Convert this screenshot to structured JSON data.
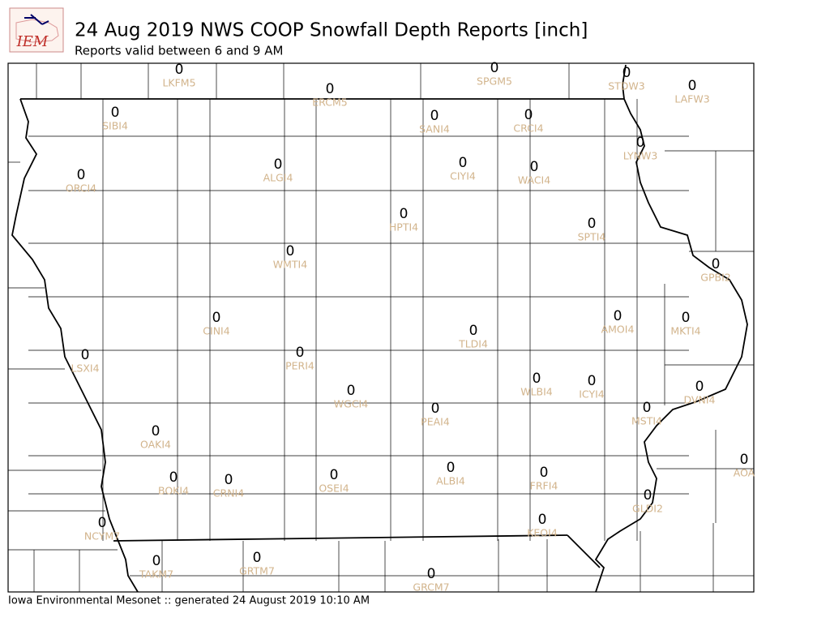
{
  "header": {
    "logo": "IEM",
    "title": "24 Aug 2019 NWS COOP Snowfall Depth Reports [inch]",
    "subtitle": "Reports valid between 6 and 9 AM"
  },
  "stations": [
    {
      "id": "LKFM5",
      "value": 0
    },
    {
      "id": "ERCM5",
      "value": 0
    },
    {
      "id": "SPGM5",
      "value": 0
    },
    {
      "id": "STDW3",
      "value": 0
    },
    {
      "id": "LAFW3",
      "value": 0
    },
    {
      "id": "SIBI4",
      "value": 0
    },
    {
      "id": "SANI4",
      "value": 0
    },
    {
      "id": "CRCI4",
      "value": 0
    },
    {
      "id": "LYNW3",
      "value": 0
    },
    {
      "id": "ALGI4",
      "value": 0
    },
    {
      "id": "CIYI4",
      "value": 0
    },
    {
      "id": "WACI4",
      "value": 0
    },
    {
      "id": "ORCI4",
      "value": 0
    },
    {
      "id": "HPTI4",
      "value": 0
    },
    {
      "id": "SPTI4",
      "value": 0
    },
    {
      "id": "WMTI4",
      "value": 0
    },
    {
      "id": "GPBI2",
      "value": 0
    },
    {
      "id": "CINI4",
      "value": 0
    },
    {
      "id": "AMOI4",
      "value": 0
    },
    {
      "id": "MKTI4",
      "value": 0
    },
    {
      "id": "TLDI4",
      "value": 0
    },
    {
      "id": "PERI4",
      "value": 0
    },
    {
      "id": "LSXI4",
      "value": 0
    },
    {
      "id": "WLBI4",
      "value": 0
    },
    {
      "id": "ICYI4",
      "value": 0
    },
    {
      "id": "DVNI4",
      "value": 0
    },
    {
      "id": "WGCI4",
      "value": 0
    },
    {
      "id": "MSTI4",
      "value": 0
    },
    {
      "id": "PEAI4",
      "value": 0
    },
    {
      "id": "OAKI4",
      "value": 0
    },
    {
      "id": "AOA",
      "value": 0
    },
    {
      "id": "ALBI4",
      "value": 0
    },
    {
      "id": "FRFI4",
      "value": 0
    },
    {
      "id": "OSEI4",
      "value": 0
    },
    {
      "id": "BOKI4",
      "value": 0
    },
    {
      "id": "CRNI4",
      "value": 0
    },
    {
      "id": "GLDI2",
      "value": 0
    },
    {
      "id": "KEOI4",
      "value": 0
    },
    {
      "id": "NCYM7",
      "value": 0
    },
    {
      "id": "TAKM7",
      "value": 0
    },
    {
      "id": "GRTM7",
      "value": 0
    },
    {
      "id": "GRCM7",
      "value": 0
    }
  ],
  "footer": "Iowa Environmental Mesonet :: generated 24 August 2019 10:10 AM"
}
